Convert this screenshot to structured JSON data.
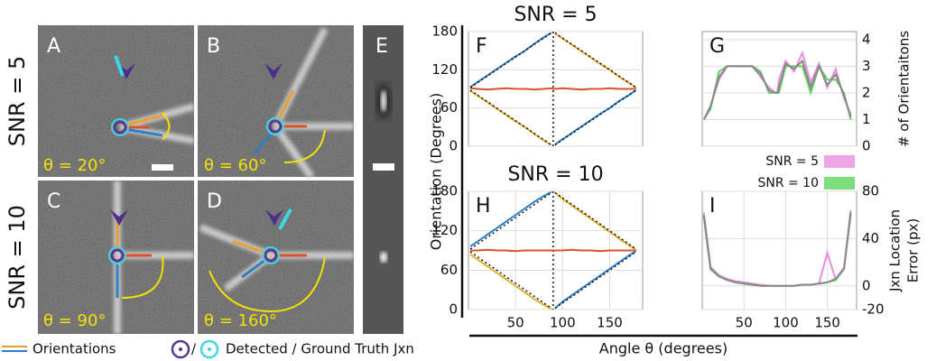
{
  "figure": {
    "ylabel": "Orientation (Degrees)",
    "xlabel": "Angle θ (degrees)"
  },
  "row_labels": [
    "SNR = 5",
    "SNR = 10"
  ],
  "image_panels": [
    {
      "label": "A",
      "caption": "θ = 20°"
    },
    {
      "label": "B",
      "caption": "θ = 60°"
    },
    {
      "label": "C",
      "caption": "θ = 90°"
    },
    {
      "label": "D",
      "caption": "θ = 160°"
    },
    {
      "label": "E"
    }
  ],
  "legend": {
    "orientations": "Orientations",
    "separator": "/",
    "junctions": "Detected / Ground Truth Jxn"
  },
  "chart_data": [
    {
      "type": "line",
      "label": "F",
      "title": "SNR = 5",
      "yaxis": "left",
      "grid": true,
      "vline": 90,
      "x": [
        2,
        10,
        20,
        30,
        40,
        50,
        60,
        70,
        80,
        88,
        90,
        92,
        100,
        110,
        120,
        130,
        140,
        150,
        160,
        170,
        178
      ],
      "xlim": [
        0,
        185
      ],
      "ylim": [
        0,
        180
      ],
      "yticks": [
        0,
        60,
        120,
        180
      ],
      "series": [
        {
          "color": "#2f7fc4",
          "values": [
            93,
            101,
            111,
            121,
            131,
            141,
            150,
            161,
            171,
            178,
            null,
            3,
            11,
            21,
            31,
            41,
            51,
            60,
            71,
            80,
            88
          ]
        },
        {
          "color": "#e6b030",
          "values": [
            87,
            79,
            69,
            59,
            49,
            39,
            30,
            19,
            9,
            2,
            null,
            177,
            169,
            159,
            149,
            139,
            129,
            120,
            109,
            100,
            92
          ]
        },
        {
          "color": "#d9532c",
          "values": [
            91,
            90,
            89,
            90,
            91,
            90,
            90,
            89,
            90,
            91,
            90,
            90,
            91,
            90,
            89,
            90,
            90,
            91,
            90,
            90,
            90
          ]
        },
        {
          "color": "#111111",
          "style": "dotted",
          "values": [
            92,
            100,
            110,
            120,
            130,
            140,
            150,
            160,
            170,
            178,
            null,
            2,
            10,
            20,
            30,
            40,
            50,
            60,
            70,
            80,
            88
          ]
        },
        {
          "color": "#111111",
          "style": "dotted",
          "values": [
            88,
            80,
            70,
            60,
            50,
            40,
            30,
            20,
            10,
            2,
            null,
            178,
            170,
            160,
            150,
            140,
            130,
            120,
            110,
            100,
            92
          ]
        }
      ]
    },
    {
      "type": "line",
      "label": "G",
      "yaxis": "right",
      "grid": true,
      "ylabel": [
        "# of Orientaitons"
      ],
      "x": [
        2,
        10,
        20,
        30,
        40,
        50,
        60,
        70,
        80,
        88,
        90,
        92,
        100,
        110,
        120,
        130,
        140,
        150,
        160,
        170,
        178
      ],
      "xlim": [
        0,
        185
      ],
      "ylim": [
        0,
        4.3
      ],
      "yticks": [
        0,
        1,
        2,
        3,
        4
      ],
      "series": [
        {
          "name": "SNR = 5",
          "color": "#e88ee0",
          "values": [
            1,
            1.5,
            2.5,
            3,
            3,
            3,
            3,
            2.6,
            2.2,
            2,
            2,
            2.5,
            3.2,
            2.8,
            3.5,
            2.4,
            3.1,
            2.2,
            2.9,
            1.8,
            1.2
          ]
        },
        {
          "name": "SNR = 10",
          "color": "#5fd35f",
          "values": [
            1,
            1.4,
            2.8,
            3,
            3,
            3,
            3,
            2.8,
            2,
            2,
            2,
            2,
            3,
            3,
            3,
            2,
            3,
            2.5,
            2.5,
            2,
            1
          ]
        },
        {
          "color": "#888888",
          "values": [
            1,
            1.5,
            2.6,
            3,
            3,
            3,
            3,
            2.7,
            2.1,
            2,
            2,
            2.2,
            3.1,
            2.9,
            3.2,
            2.2,
            3,
            2.3,
            2.7,
            1.9,
            1.1
          ]
        }
      ]
    },
    {
      "type": "line",
      "label": "H",
      "title": "SNR = 10",
      "yaxis": "left",
      "grid": true,
      "vline": 90,
      "x": [
        2,
        10,
        20,
        30,
        40,
        50,
        60,
        70,
        80,
        88,
        90,
        92,
        100,
        110,
        120,
        130,
        140,
        150,
        160,
        170,
        178
      ],
      "xlim": [
        0,
        185
      ],
      "ylim": [
        0,
        180
      ],
      "yticks": [
        0,
        60,
        120,
        180
      ],
      "xticks": [
        50,
        100,
        150
      ],
      "series": [
        {
          "color": "#2f7fc4",
          "values": [
            96,
            104,
            114,
            124,
            134,
            144,
            154,
            164,
            173,
            179,
            null,
            2,
            12,
            22,
            32,
            42,
            52,
            62,
            72,
            82,
            89
          ]
        },
        {
          "color": "#e6b030",
          "values": [
            84,
            76,
            66,
            56,
            46,
            36,
            26,
            16,
            7,
            1,
            null,
            178,
            168,
            158,
            148,
            138,
            128,
            118,
            108,
            98,
            91
          ]
        },
        {
          "color": "#d9532c",
          "values": [
            90,
            90,
            91,
            90,
            90,
            89,
            90,
            90,
            90,
            90,
            90,
            90,
            90,
            91,
            90,
            90,
            89,
            90,
            90,
            90,
            90
          ]
        },
        {
          "color": "#111111",
          "style": "dotted",
          "values": [
            92,
            100,
            110,
            120,
            130,
            140,
            150,
            160,
            170,
            178,
            null,
            2,
            10,
            20,
            30,
            40,
            50,
            60,
            70,
            80,
            88
          ]
        },
        {
          "color": "#111111",
          "style": "dotted",
          "values": [
            88,
            80,
            70,
            60,
            50,
            40,
            30,
            20,
            10,
            2,
            null,
            178,
            170,
            160,
            150,
            140,
            130,
            120,
            110,
            100,
            92
          ]
        }
      ]
    },
    {
      "type": "line",
      "label": "I",
      "yaxis": "right",
      "grid": true,
      "ylabel": [
        "Jxn Location",
        "Error (px)"
      ],
      "x": [
        2,
        10,
        20,
        30,
        40,
        50,
        60,
        70,
        80,
        88,
        90,
        92,
        100,
        110,
        120,
        130,
        140,
        150,
        160,
        170,
        178
      ],
      "xlim": [
        0,
        185
      ],
      "ylim": [
        -20,
        80
      ],
      "yticks": [
        -20,
        0,
        40,
        80
      ],
      "xticks": [
        50,
        100,
        150
      ],
      "series": [
        {
          "color": "#e88ee0",
          "values": [
            62,
            16,
            9,
            6,
            4,
            3,
            2,
            1,
            0,
            0,
            0,
            0,
            0,
            0,
            1,
            1,
            2,
            28,
            5,
            14,
            64
          ]
        },
        {
          "color": "#5fd35f",
          "values": [
            58,
            14,
            8,
            5,
            3,
            2,
            1,
            0,
            0,
            0,
            0,
            0,
            0,
            0,
            1,
            1,
            2,
            3,
            5,
            15,
            60
          ]
        },
        {
          "color": "#888888",
          "values": [
            60,
            15,
            8,
            5,
            3,
            2,
            1,
            0,
            0,
            0,
            0,
            0,
            0,
            0,
            1,
            1,
            2,
            3,
            6,
            15,
            62
          ]
        }
      ]
    }
  ]
}
